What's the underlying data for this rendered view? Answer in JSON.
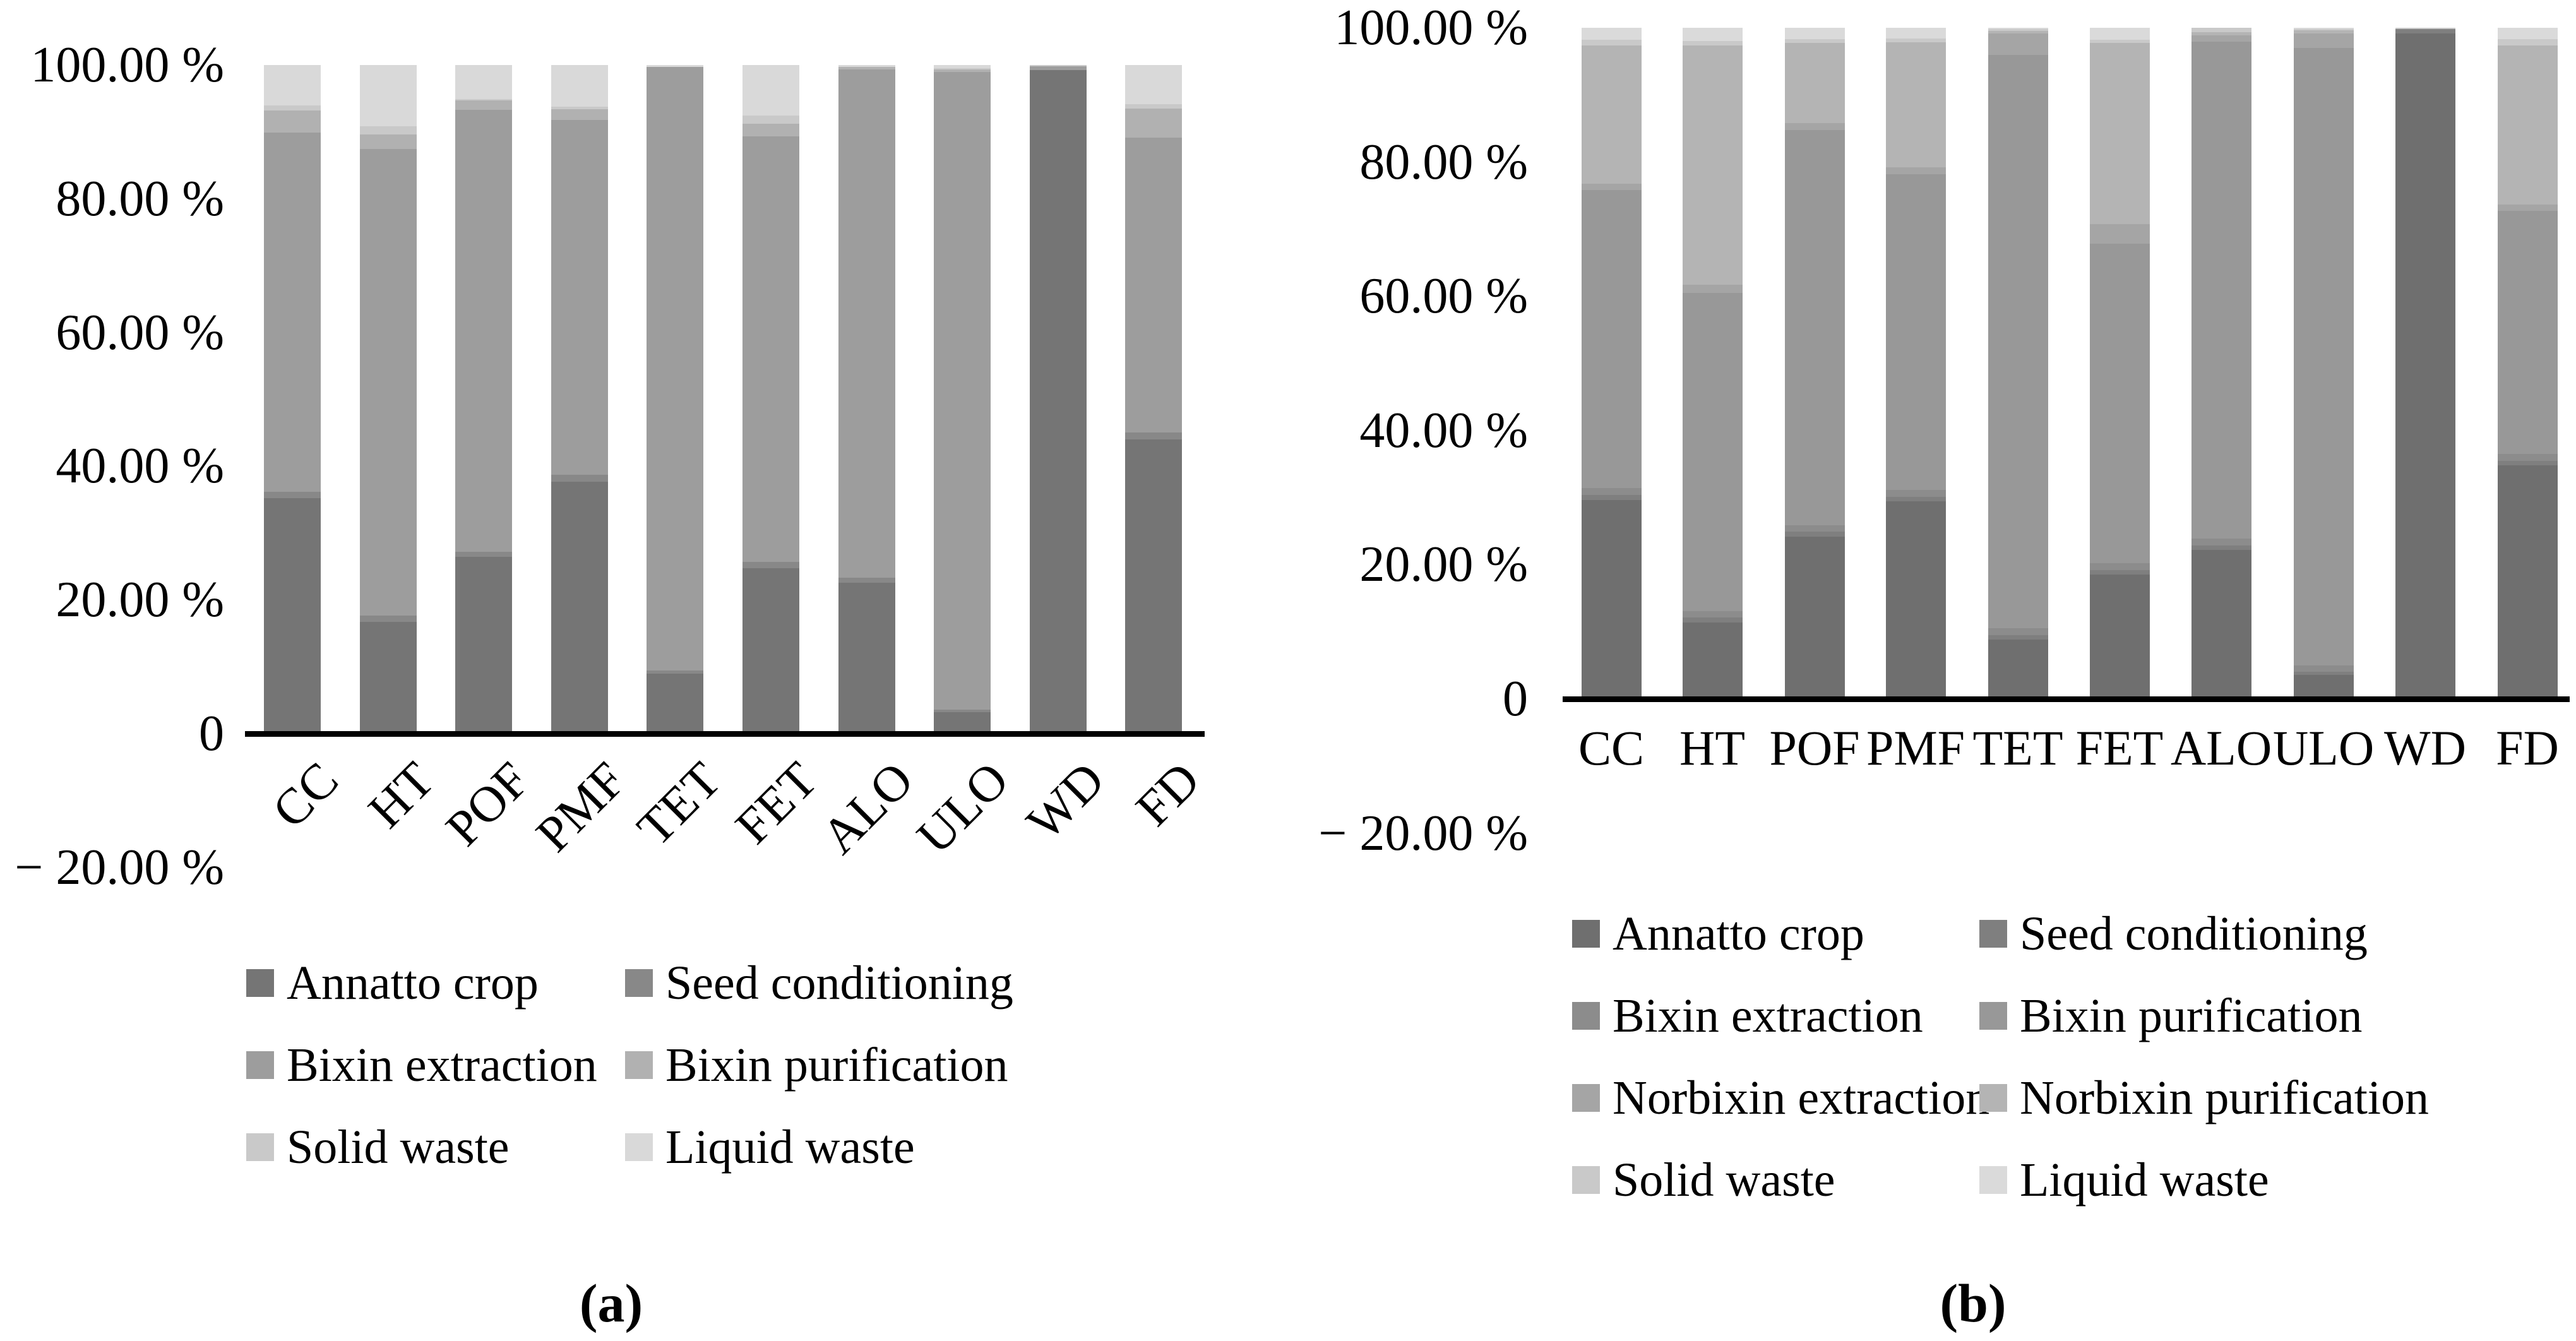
{
  "figure": {
    "description": "Two stacked 100% bar charts of process stage contributions",
    "unit": "%"
  },
  "chart_data": [
    {
      "id": "a",
      "type": "bar",
      "stacked": true,
      "stacked_unit": "percent",
      "caption": "(a)",
      "xlabel": "",
      "ylabel": "",
      "ylim": [
        -20,
        100
      ],
      "grid": false,
      "legend_position": "bottom",
      "legend_columns": 2,
      "categories": [
        "CC",
        "HT",
        "POF",
        "PMF",
        "TET",
        "FET",
        "ALO",
        "ULO",
        "WD",
        "FD"
      ],
      "y_ticks": [
        {
          "value": 100,
          "label": "100.00 %"
        },
        {
          "value": 80,
          "label": "80.00 %"
        },
        {
          "value": 60,
          "label": "60.00 %"
        },
        {
          "value": 40,
          "label": "40.00 %"
        },
        {
          "value": 20,
          "label": "20.00 %"
        },
        {
          "value": 0,
          "label": "0"
        },
        {
          "value": -20,
          "label": "− 20.00 %"
        }
      ],
      "series": [
        {
          "name": "Annatto crop",
          "color": "#757575",
          "values": [
            35.2,
            16.7,
            26.4,
            37.7,
            9.0,
            24.7,
            22.6,
            3.2,
            99.2,
            44.0
          ]
        },
        {
          "name": "Seed conditioning",
          "color": "#888888",
          "values": [
            1.0,
            1.0,
            0.8,
            1.0,
            0.4,
            1.0,
            0.7,
            0.4,
            0.0,
            1.0
          ]
        },
        {
          "name": "Bixin extraction",
          "color": "#9d9d9d",
          "values": [
            53.7,
            69.7,
            66.1,
            53.1,
            90.3,
            63.6,
            76.0,
            95.4,
            0.6,
            44.1
          ]
        },
        {
          "name": "Bixin purification",
          "color": "#b1b1b1",
          "values": [
            3.3,
            2.2,
            1.4,
            1.6,
            0.0,
            1.9,
            0.4,
            0.3,
            0.0,
            4.4
          ]
        },
        {
          "name": "Solid waste",
          "color": "#c9c9c9",
          "values": [
            0.8,
            1.2,
            0.2,
            0.4,
            0.0,
            1.2,
            0.0,
            0.2,
            0.2,
            0.6
          ]
        },
        {
          "name": "Liquid waste",
          "color": "#d9d9d9",
          "values": [
            6.0,
            9.2,
            5.1,
            6.2,
            0.3,
            7.6,
            0.3,
            0.5,
            0.0,
            5.9
          ]
        }
      ]
    },
    {
      "id": "b",
      "type": "bar",
      "stacked": true,
      "stacked_unit": "percent",
      "caption": "(b)",
      "xlabel": "",
      "ylabel": "",
      "ylim": [
        -20,
        100
      ],
      "grid": false,
      "legend_position": "bottom",
      "legend_columns": 2,
      "categories": [
        "CC",
        "HT",
        "POF",
        "PMF",
        "TET",
        "FET",
        "ALO",
        "ULO",
        "WD",
        "FD"
      ],
      "y_ticks": [
        {
          "value": 100,
          "label": "100.00 %"
        },
        {
          "value": 80,
          "label": "80.00 %"
        },
        {
          "value": 60,
          "label": "60.00 %"
        },
        {
          "value": 40,
          "label": "40.00 %"
        },
        {
          "value": 20,
          "label": "20.00 %"
        },
        {
          "value": 0,
          "label": "0"
        },
        {
          "value": -20,
          "label": "− 20.00 %"
        }
      ],
      "series": [
        {
          "name": "Annatto crop",
          "color": "#6f6f6f",
          "values": [
            29.6,
            11.4,
            24.2,
            29.4,
            8.8,
            18.5,
            22.2,
            3.6,
            99.2,
            34.8
          ]
        },
        {
          "name": "Seed conditioning",
          "color": "#7f7f7f",
          "values": [
            0.8,
            0.7,
            0.7,
            0.7,
            0.7,
            0.7,
            0.7,
            0.4,
            0.6,
            0.7
          ]
        },
        {
          "name": "Bixin extraction",
          "color": "#8c8c8c",
          "values": [
            1.0,
            1.0,
            1.0,
            1.0,
            1.0,
            1.0,
            1.0,
            1.0,
            0.0,
            1.0
          ]
        },
        {
          "name": "Bixin purification",
          "color": "#989898",
          "values": [
            44.4,
            47.4,
            58.9,
            47.1,
            85.5,
            47.6,
            74.0,
            92.0,
            0.0,
            36.2
          ]
        },
        {
          "name": "Norbixin extraction",
          "color": "#a5a5a5",
          "values": [
            1.0,
            1.2,
            1.0,
            1.0,
            3.2,
            2.9,
            1.0,
            2.2,
            0.0,
            1.0
          ]
        },
        {
          "name": "Norbixin purification",
          "color": "#b4b4b4",
          "values": [
            20.6,
            35.7,
            11.9,
            18.6,
            0.3,
            27.0,
            0.4,
            0.4,
            0.0,
            23.7
          ]
        },
        {
          "name": "Solid waste",
          "color": "#c9c9c9",
          "values": [
            0.8,
            0.6,
            0.6,
            0.6,
            0.3,
            0.5,
            0.7,
            0.2,
            0.2,
            0.9
          ]
        },
        {
          "name": "Liquid waste",
          "color": "#dadada",
          "values": [
            1.8,
            2.0,
            1.7,
            1.6,
            0.2,
            1.8,
            0.0,
            0.2,
            0.0,
            1.7
          ]
        }
      ]
    }
  ]
}
